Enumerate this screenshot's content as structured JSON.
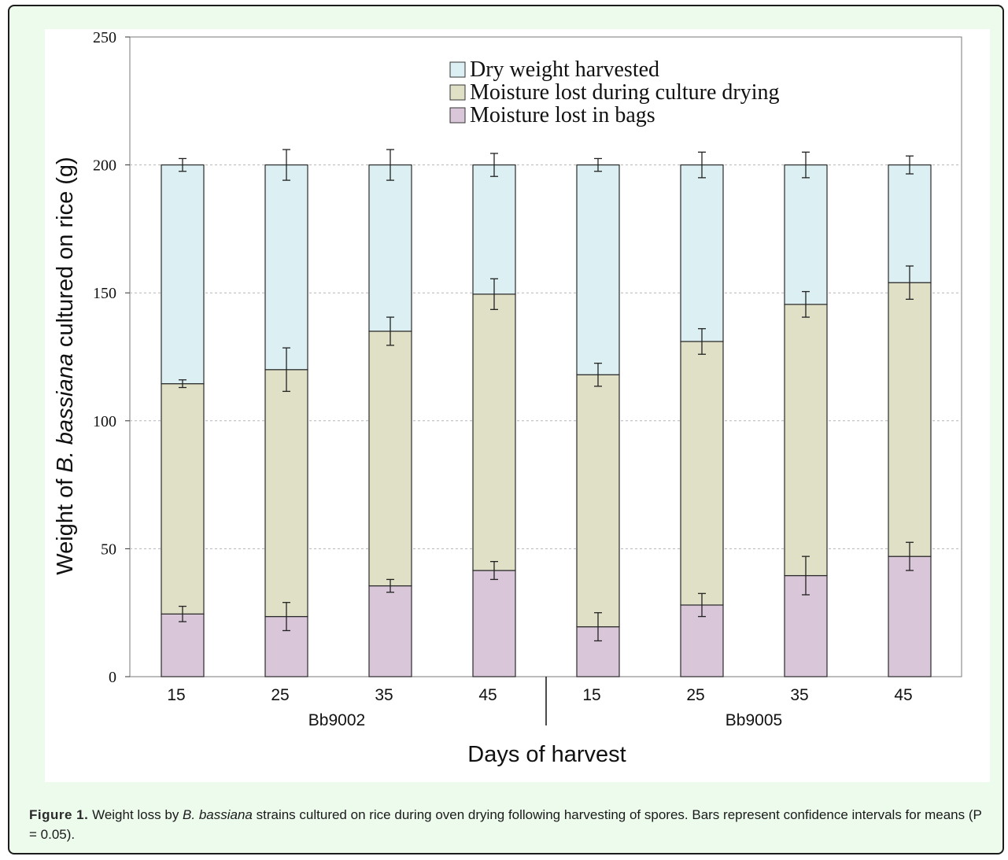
{
  "chart_data": {
    "type": "bar",
    "stacked": true,
    "categories": [
      "15",
      "25",
      "35",
      "45",
      "15",
      "25",
      "35",
      "45"
    ],
    "groups": [
      {
        "label": "Bb9002",
        "categories": [
          "15",
          "25",
          "35",
          "45"
        ]
      },
      {
        "label": "Bb9005",
        "categories": [
          "15",
          "25",
          "35",
          "45"
        ]
      }
    ],
    "series": [
      {
        "name": "Moisture lost in bags",
        "color": "#d9c6d9",
        "values": [
          24.5,
          23.5,
          35.5,
          41.5,
          19.5,
          28,
          39.5,
          47
        ],
        "errors": [
          3,
          5.5,
          2.5,
          3.5,
          5.5,
          4.5,
          7.5,
          5.5
        ]
      },
      {
        "name": "Moisture lost during culture drying",
        "color": "#e0e0c6",
        "values": [
          90,
          96.5,
          99.5,
          108,
          98.5,
          103,
          106,
          107
        ],
        "errors": [
          1.5,
          8.5,
          5.5,
          6,
          4.5,
          5,
          5,
          6.5
        ]
      },
      {
        "name": "Dry weight harvested",
        "color": "#dcf0f3",
        "values": [
          85.5,
          80,
          65,
          50.5,
          82,
          69,
          54.5,
          46
        ],
        "errors": [
          2.5,
          6,
          6,
          4.5,
          2.5,
          5,
          5,
          3.5
        ]
      }
    ],
    "legend_order": [
      "Dry weight harvested",
      "Moisture lost during culture drying",
      "Moisture lost in bags"
    ],
    "legend_position": "top",
    "xlabel": "Days of harvest",
    "ylabel_parts": [
      "Weight of ",
      "B. bassiana",
      " cultured on rice (g)"
    ],
    "ylim": [
      0,
      250
    ],
    "yticks": [
      "0",
      "50",
      "100",
      "150",
      "200",
      "250"
    ],
    "grid": "horizontal dashed"
  },
  "caption": {
    "label": "Figure 1.",
    "text_1": " Weight loss by ",
    "species": "B. bassiana",
    "text_2": " strains cultured on rice during oven drying following harvesting of spores. Bars represent confidence intervals for means (P = 0.05)."
  }
}
